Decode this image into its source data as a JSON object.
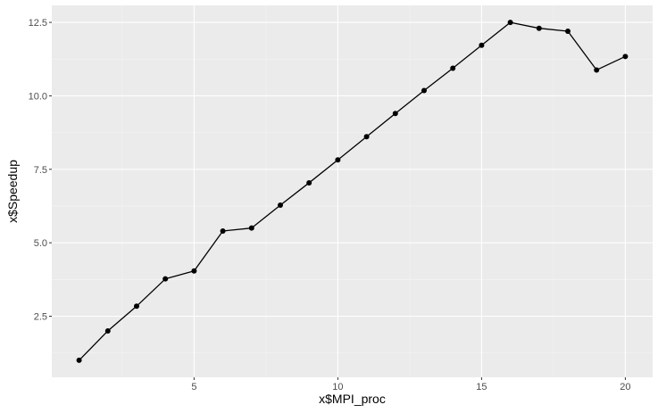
{
  "chart_data": {
    "type": "line",
    "xlabel": "x$MPI_proc",
    "ylabel": "x$Speedup",
    "x": [
      1,
      2,
      3,
      4,
      5,
      6,
      7,
      8,
      9,
      10,
      11,
      12,
      13,
      14,
      15,
      16,
      17,
      18,
      19,
      20
    ],
    "series": [
      {
        "values": [
          1.0,
          2.0,
          2.84,
          3.77,
          4.04,
          5.4,
          5.5,
          6.28,
          7.04,
          7.82,
          8.61,
          9.4,
          10.18,
          10.94,
          11.72,
          12.5,
          12.3,
          12.2,
          10.88,
          11.34
        ]
      }
    ],
    "xlim": [
      0.05,
      20.95
    ],
    "ylim": [
      0.42,
      13.08
    ],
    "x_ticks": [
      5,
      10,
      15,
      20
    ],
    "x_tick_labels": [
      "5",
      "10",
      "15",
      "20"
    ],
    "y_ticks": [
      2.5,
      5.0,
      7.5,
      10.0,
      12.5
    ],
    "y_tick_labels": [
      "2.5",
      "5.0",
      "7.5",
      "10.0",
      "12.5"
    ],
    "x_minor_ticks": [
      2.5,
      7.5,
      12.5,
      17.5
    ],
    "y_minor_ticks": [
      1.25,
      3.75,
      6.25,
      8.75,
      11.25
    ],
    "grid": true,
    "legend": "none",
    "colors": {
      "panel": "#ebebeb",
      "grid_major": "#ffffff",
      "grid_minor": "#f5f5f5",
      "line": "#000000",
      "tick_text": "#4d4d4d",
      "tick_mark": "#333333"
    }
  }
}
